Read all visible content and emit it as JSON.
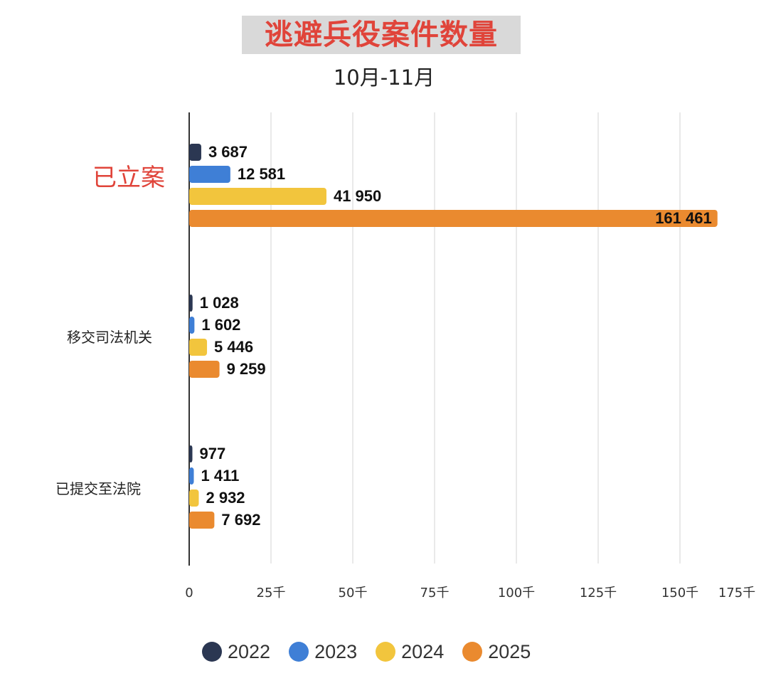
{
  "chart_data": {
    "type": "bar",
    "orientation": "horizontal",
    "title": "逃避兵役案件数量",
    "subtitle": "10月-11月",
    "categories": [
      "已立案",
      "移交司法机关",
      "已提交至法院"
    ],
    "series": [
      {
        "name": "2022",
        "color": "#2b3752",
        "values": [
          3687,
          1028,
          977
        ],
        "labels": [
          "3 687",
          "1 028",
          "977"
        ]
      },
      {
        "name": "2023",
        "color": "#3f7fd6",
        "values": [
          12581,
          1602,
          1411
        ],
        "labels": [
          "12 581",
          "1 602",
          "1 411"
        ]
      },
      {
        "name": "2024",
        "color": "#f2c53d",
        "values": [
          41950,
          5446,
          2932
        ],
        "labels": [
          "41 950",
          "5 446",
          "2 932"
        ]
      },
      {
        "name": "2025",
        "color": "#ea8a2f",
        "values": [
          161461,
          9259,
          7692
        ],
        "labels": [
          "161 461",
          "9 259",
          "7 692"
        ]
      }
    ],
    "x_ticks": [
      {
        "value": 0,
        "label": "0"
      },
      {
        "value": 25000,
        "label": "25千"
      },
      {
        "value": 50000,
        "label": "50千"
      },
      {
        "value": 75000,
        "label": "75千"
      },
      {
        "value": 100000,
        "label": "100千"
      },
      {
        "value": 125000,
        "label": "125千"
      },
      {
        "value": 150000,
        "label": "150千"
      },
      {
        "value": 175000,
        "label": "175千"
      }
    ],
    "xlim": [
      0,
      175000
    ],
    "grid": "vertical",
    "legend": "bottom",
    "highlight_category_color": "#e0443a"
  }
}
